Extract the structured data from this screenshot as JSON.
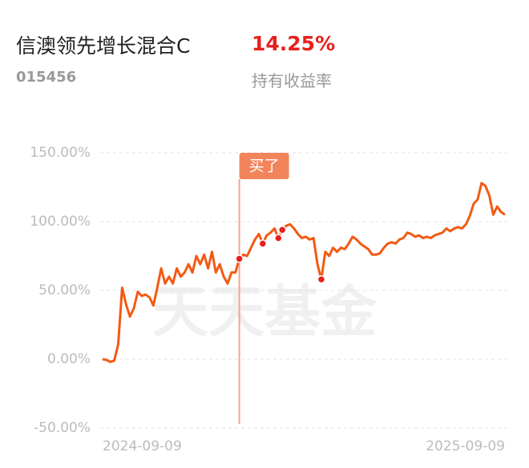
{
  "header": {
    "fund_name": "信澳领先增长混合C",
    "fund_code": "015456",
    "return_value": "14.25%",
    "return_label": "持有收益率"
  },
  "chart_data": {
    "type": "line",
    "color": "#f25a14",
    "grid": true,
    "ylim": [
      -50,
      150
    ],
    "yticks": [
      {
        "value": -50,
        "label": "-50.00%"
      },
      {
        "value": 0,
        "label": "0.00%"
      },
      {
        "value": 50,
        "label": "50.00%"
      },
      {
        "value": 100,
        "label": "100.00%"
      },
      {
        "value": 150,
        "label": "150.00%"
      }
    ],
    "xticks": [
      {
        "value": 0,
        "label": "2024-09-09"
      },
      {
        "value": 103,
        "label": "2025-09-09"
      }
    ],
    "values": [
      0,
      -0.5,
      -2,
      -1,
      11,
      52,
      40,
      31,
      37,
      49,
      46,
      47,
      45,
      39,
      52,
      66,
      55,
      60,
      55,
      66,
      60,
      63,
      69,
      63,
      75,
      69,
      76,
      66,
      78,
      63,
      69,
      60,
      55,
      63,
      63,
      73,
      76,
      75,
      81,
      87,
      91,
      84,
      90,
      92,
      95,
      88,
      94,
      97,
      98,
      95,
      91,
      88,
      89,
      87,
      88,
      69,
      58,
      78,
      75,
      81,
      78,
      81,
      80,
      84,
      89,
      87,
      84,
      82,
      80,
      76,
      76,
      77,
      81,
      84,
      85,
      84,
      87,
      88,
      92,
      91,
      89,
      90,
      88,
      89,
      88,
      90,
      91,
      92,
      95,
      93,
      95,
      96,
      95,
      98,
      104,
      113,
      116,
      128,
      126,
      119,
      105,
      111,
      107,
      105
    ],
    "marker_indices": [
      35,
      41,
      45,
      46,
      56
    ],
    "buy_index": 35,
    "buy_label": "买了",
    "watermark": "天天基金"
  }
}
